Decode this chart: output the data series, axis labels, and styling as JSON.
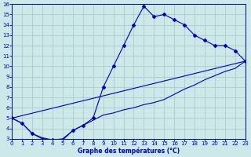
{
  "xlabel": "Graphe des températures (°C)",
  "bg_color": "#cce8e8",
  "grid_color": "#aacccc",
  "line_color": "#0000bb",
  "xlim": [
    0,
    23
  ],
  "ylim": [
    3,
    16
  ],
  "xticks": [
    0,
    1,
    2,
    3,
    4,
    5,
    6,
    7,
    8,
    9,
    10,
    11,
    12,
    13,
    14,
    15,
    16,
    17,
    18,
    19,
    20,
    21,
    22,
    23
  ],
  "yticks": [
    3,
    4,
    5,
    6,
    7,
    8,
    9,
    10,
    11,
    12,
    13,
    14,
    15,
    16
  ],
  "curve1_x": [
    0,
    1,
    2,
    3,
    4,
    5,
    6,
    7,
    8,
    9,
    10,
    11,
    12,
    13,
    14,
    15,
    16,
    17,
    18,
    19,
    20,
    21,
    22,
    23
  ],
  "curve1_y": [
    5.0,
    4.5,
    3.5,
    3.0,
    2.9,
    2.9,
    3.8,
    4.3,
    5.0,
    8.0,
    10.0,
    12.0,
    14.0,
    15.8,
    14.8,
    15.0,
    14.5,
    14.0,
    13.0,
    12.5,
    12.0,
    12.0,
    11.5,
    10.5
  ],
  "curve2_x": [
    0,
    1,
    2,
    3,
    4,
    5,
    6,
    7,
    8,
    9,
    10,
    11,
    12,
    13,
    14,
    15,
    16,
    17,
    18,
    19,
    20,
    21,
    22,
    23
  ],
  "curve2_y": [
    5.0,
    4.5,
    3.5,
    3.1,
    2.9,
    3.0,
    3.8,
    4.3,
    4.8,
    5.3,
    5.5,
    5.8,
    6.0,
    6.3,
    6.5,
    6.8,
    7.3,
    7.8,
    8.2,
    8.7,
    9.1,
    9.5,
    9.8,
    10.5
  ],
  "curve3_x": [
    0,
    23
  ],
  "curve3_y": [
    5.0,
    10.5
  ]
}
